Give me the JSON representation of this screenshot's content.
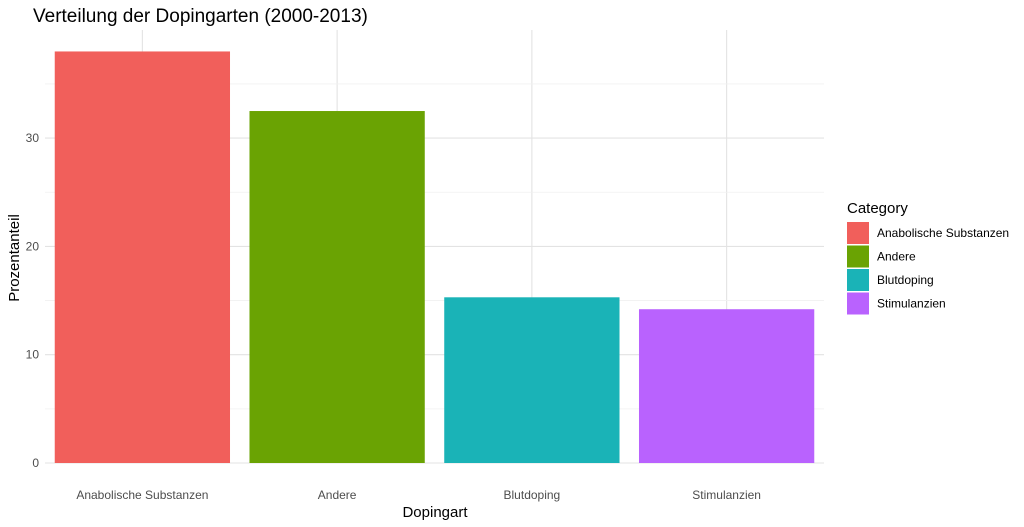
{
  "chart_data": {
    "type": "bar",
    "title": "Verteilung der Dopingarten (2000-2013)",
    "xlabel": "Dopingart",
    "ylabel": "Prozentanteil",
    "categories": [
      "Anabolische Substanzen",
      "Andere",
      "Blutdoping",
      "Stimulanzien"
    ],
    "values": [
      38.0,
      32.5,
      15.3,
      14.2
    ],
    "colors": [
      "#f15f5b",
      "#6aa303",
      "#1ab3b7",
      "#b962fe"
    ],
    "ylim": [
      0,
      40
    ],
    "yticks": [
      0,
      10,
      20,
      30
    ],
    "grid": true,
    "legend": {
      "title": "Category",
      "position": "right",
      "items": [
        "Anabolische Substanzen",
        "Andere",
        "Blutdoping",
        "Stimulanzien"
      ]
    }
  }
}
